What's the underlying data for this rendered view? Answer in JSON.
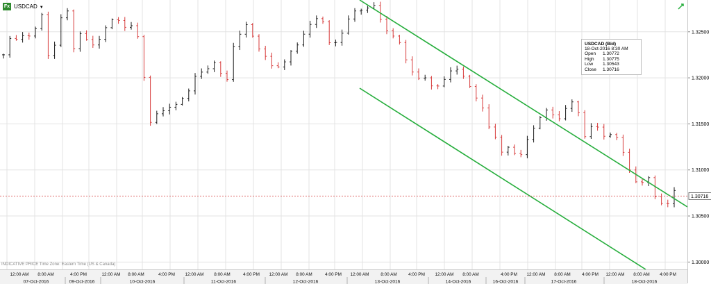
{
  "header": {
    "badge": "Fx",
    "symbol": "USDCAD",
    "footnote": "INDICATIVE PRICE   Time Zone: Eastern Time (US & Canada)"
  },
  "legend": {
    "title": "USDCAD (Bid)",
    "datetime": "18-Oct-2016  8:30 AM",
    "rows": [
      {
        "k": "Open",
        "v": "1.30772"
      },
      {
        "k": "High",
        "v": "1.30775"
      },
      {
        "k": "Low",
        "v": "1.30543"
      },
      {
        "k": "Close",
        "v": "1.30716"
      }
    ]
  },
  "colors": {
    "up": "#1a1a1a",
    "down": "#d73a3a",
    "channel": "#27ae3d",
    "last_line": "#e07070",
    "grid": "#e3e3e3"
  },
  "chart_data": {
    "type": "candlestick",
    "instrument": "USDCAD (Bid)",
    "ylim": [
      1.2995,
      1.3283
    ],
    "y_ticks": [
      "1.32500",
      "1.32000",
      "1.31500",
      "1.31000",
      "1.30500",
      "1.30000"
    ],
    "last_price": "1.30716",
    "time_labels": [
      "12:00 AM",
      "8:00 AM",
      "4:00 PM",
      "12:00 AM",
      "8:00 AM",
      "4:00 PM",
      "12:00 AM",
      "8:00 AM",
      "4:00 PM",
      "12:00 AM",
      "8:00 AM",
      "4:00 PM",
      "12:00 AM",
      "8:00 AM",
      "4:00 PM",
      "12:00 AM",
      "8:00 AM",
      "4:00 PM",
      "12:00 AM",
      "8:00 AM",
      "4:00 PM",
      "12:00 AM",
      "8:00 AM",
      "4:00 PM",
      "12:00 AM",
      "8:00 AM",
      "4:00 PM"
    ],
    "date_labels": [
      "07-Oct-2016",
      "09-Oct-2016",
      "10-Oct-2016",
      "11-Oct-2016",
      "12-Oct-2016",
      "13-Oct-2016",
      "14-Oct-2016",
      "16-Oct-2016",
      "17-Oct-2016",
      "18-Oct-2016"
    ],
    "channel": [
      {
        "from": {
          "x_label": "12-Oct-2016 12:00 AM",
          "y": 1.3283
        },
        "to": {
          "x_label": "18-Oct-2016 4:00 PM",
          "y": 1.3078
        }
      },
      {
        "from": {
          "x_label": "12-Oct-2016 12:00 AM",
          "y": 1.3205
        },
        "to": {
          "x_label": "18-Oct-2016 8:00 AM",
          "y": 1.2995
        }
      }
    ],
    "path": [
      [
        0,
        1.3225
      ],
      [
        0.7,
        1.3238
      ],
      [
        2.2,
        1.3243
      ],
      [
        4,
        1.3244
      ],
      [
        5.2,
        1.3268
      ],
      [
        6.5,
        1.3205
      ],
      [
        7.5,
        1.3273
      ],
      [
        8.2,
        1.3262
      ],
      [
        8.7,
        1.3275
      ],
      [
        9.5,
        1.323
      ],
      [
        10.5,
        1.3252
      ],
      [
        11.3,
        1.3242
      ],
      [
        12.5,
        1.3235
      ],
      [
        13.5,
        1.3243
      ],
      [
        14.5,
        1.3258
      ],
      [
        15.3,
        1.3265
      ],
      [
        16.3,
        1.3252
      ],
      [
        17.2,
        1.3256
      ],
      [
        18,
        1.3248
      ],
      [
        18.8,
        1.3235
      ],
      [
        19.6,
        1.3165
      ],
      [
        20.3,
        1.315
      ],
      [
        21.3,
        1.3172
      ],
      [
        22,
        1.3166
      ],
      [
        23.5,
        1.3175
      ],
      [
        25,
        1.3185
      ],
      [
        26.5,
        1.32
      ],
      [
        27.5,
        1.3205
      ],
      [
        28.8,
        1.3215
      ],
      [
        29.8,
        1.3203
      ],
      [
        30.5,
        1.3192
      ],
      [
        31.6,
        1.3235
      ],
      [
        32.5,
        1.3245
      ],
      [
        33.3,
        1.3262
      ],
      [
        34.3,
        1.3242
      ],
      [
        35.2,
        1.323
      ],
      [
        36,
        1.3222
      ],
      [
        37,
        1.3213
      ],
      [
        38,
        1.3217
      ],
      [
        38.8,
        1.322
      ],
      [
        40,
        1.3232
      ],
      [
        41,
        1.3244
      ],
      [
        42,
        1.3258
      ],
      [
        43,
        1.3265
      ],
      [
        44,
        1.3257
      ],
      [
        44.8,
        1.323
      ],
      [
        45.5,
        1.324
      ],
      [
        46.3,
        1.325
      ],
      [
        47,
        1.3265
      ],
      [
        48,
        1.3273
      ],
      [
        49,
        1.3276
      ],
      [
        50,
        1.328
      ],
      [
        50.8,
        1.3282
      ],
      [
        51.4,
        1.327
      ],
      [
        52,
        1.326
      ],
      [
        52.7,
        1.3245
      ],
      [
        53.5,
        1.3245
      ],
      [
        54.5,
        1.323
      ],
      [
        55.3,
        1.3215
      ],
      [
        56,
        1.3205
      ],
      [
        57,
        1.3198
      ],
      [
        58,
        1.3197
      ],
      [
        59.2,
        1.3192
      ],
      [
        60.2,
        1.32
      ],
      [
        61,
        1.321
      ],
      [
        62,
        1.3212
      ],
      [
        63,
        1.3205
      ],
      [
        63.8,
        1.3195
      ],
      [
        64.5,
        1.3185
      ],
      [
        65.3,
        1.317
      ],
      [
        66,
        1.3155
      ],
      [
        66.7,
        1.314
      ],
      [
        67.5,
        1.313
      ],
      [
        68.2,
        1.3118
      ],
      [
        69,
        1.3125
      ],
      [
        69.8,
        1.3115
      ],
      [
        70.7,
        1.3112
      ],
      [
        71.5,
        1.3135
      ],
      [
        72.5,
        1.3148
      ],
      [
        73.5,
        1.3162
      ],
      [
        74.3,
        1.3168
      ],
      [
        75,
        1.3163
      ],
      [
        76,
        1.3158
      ],
      [
        76.8,
        1.3168
      ],
      [
        77.6,
        1.3177
      ],
      [
        78.4,
        1.3165
      ],
      [
        79.2,
        1.3145
      ],
      [
        79.8,
        1.3128
      ],
      [
        80.6,
        1.315
      ],
      [
        81.6,
        1.314
      ],
      [
        82.4,
        1.313
      ],
      [
        83.4,
        1.3138
      ],
      [
        84.2,
        1.3127
      ],
      [
        85.2,
        1.312
      ],
      [
        86,
        1.3092
      ],
      [
        86.8,
        1.3088
      ],
      [
        87.5,
        1.309
      ],
      [
        88.3,
        1.3092
      ],
      [
        88.8,
        1.308
      ],
      [
        89.5,
        1.307
      ],
      [
        90.5,
        1.3065
      ],
      [
        91,
        1.306
      ],
      [
        91.5,
        1.3075
      ],
      [
        92.1,
        1.3072
      ]
    ]
  }
}
